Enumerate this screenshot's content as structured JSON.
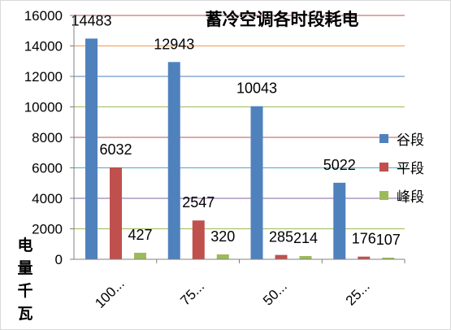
{
  "chart_data": {
    "type": "bar",
    "title": "蓄冷空调各时段耗电",
    "ylabel": "电量千瓦",
    "xlabel": "",
    "categories": [
      "100...",
      "75...",
      "50...",
      "25..."
    ],
    "series": [
      {
        "name": "谷段",
        "color": "#4f81bd",
        "values": [
          14483,
          12943,
          10043,
          5022
        ]
      },
      {
        "name": "平段",
        "color": "#c0504d",
        "values": [
          6032,
          2547,
          285,
          176
        ]
      },
      {
        "name": "峰段",
        "color": "#9bbb59",
        "values": [
          427,
          320,
          214,
          107
        ]
      }
    ],
    "ylim": [
      0,
      16000
    ],
    "yticks": [
      0,
      2000,
      4000,
      6000,
      8000,
      10000,
      12000,
      14000,
      16000
    ],
    "grid": true,
    "gridline_colors": [
      "#9bbb59",
      "#8064a2",
      "#4bacc6",
      "#c0504d",
      "#9bbb59",
      "#4f81bd",
      "#f79646",
      "#c0504d"
    ],
    "legend_position": "right"
  }
}
